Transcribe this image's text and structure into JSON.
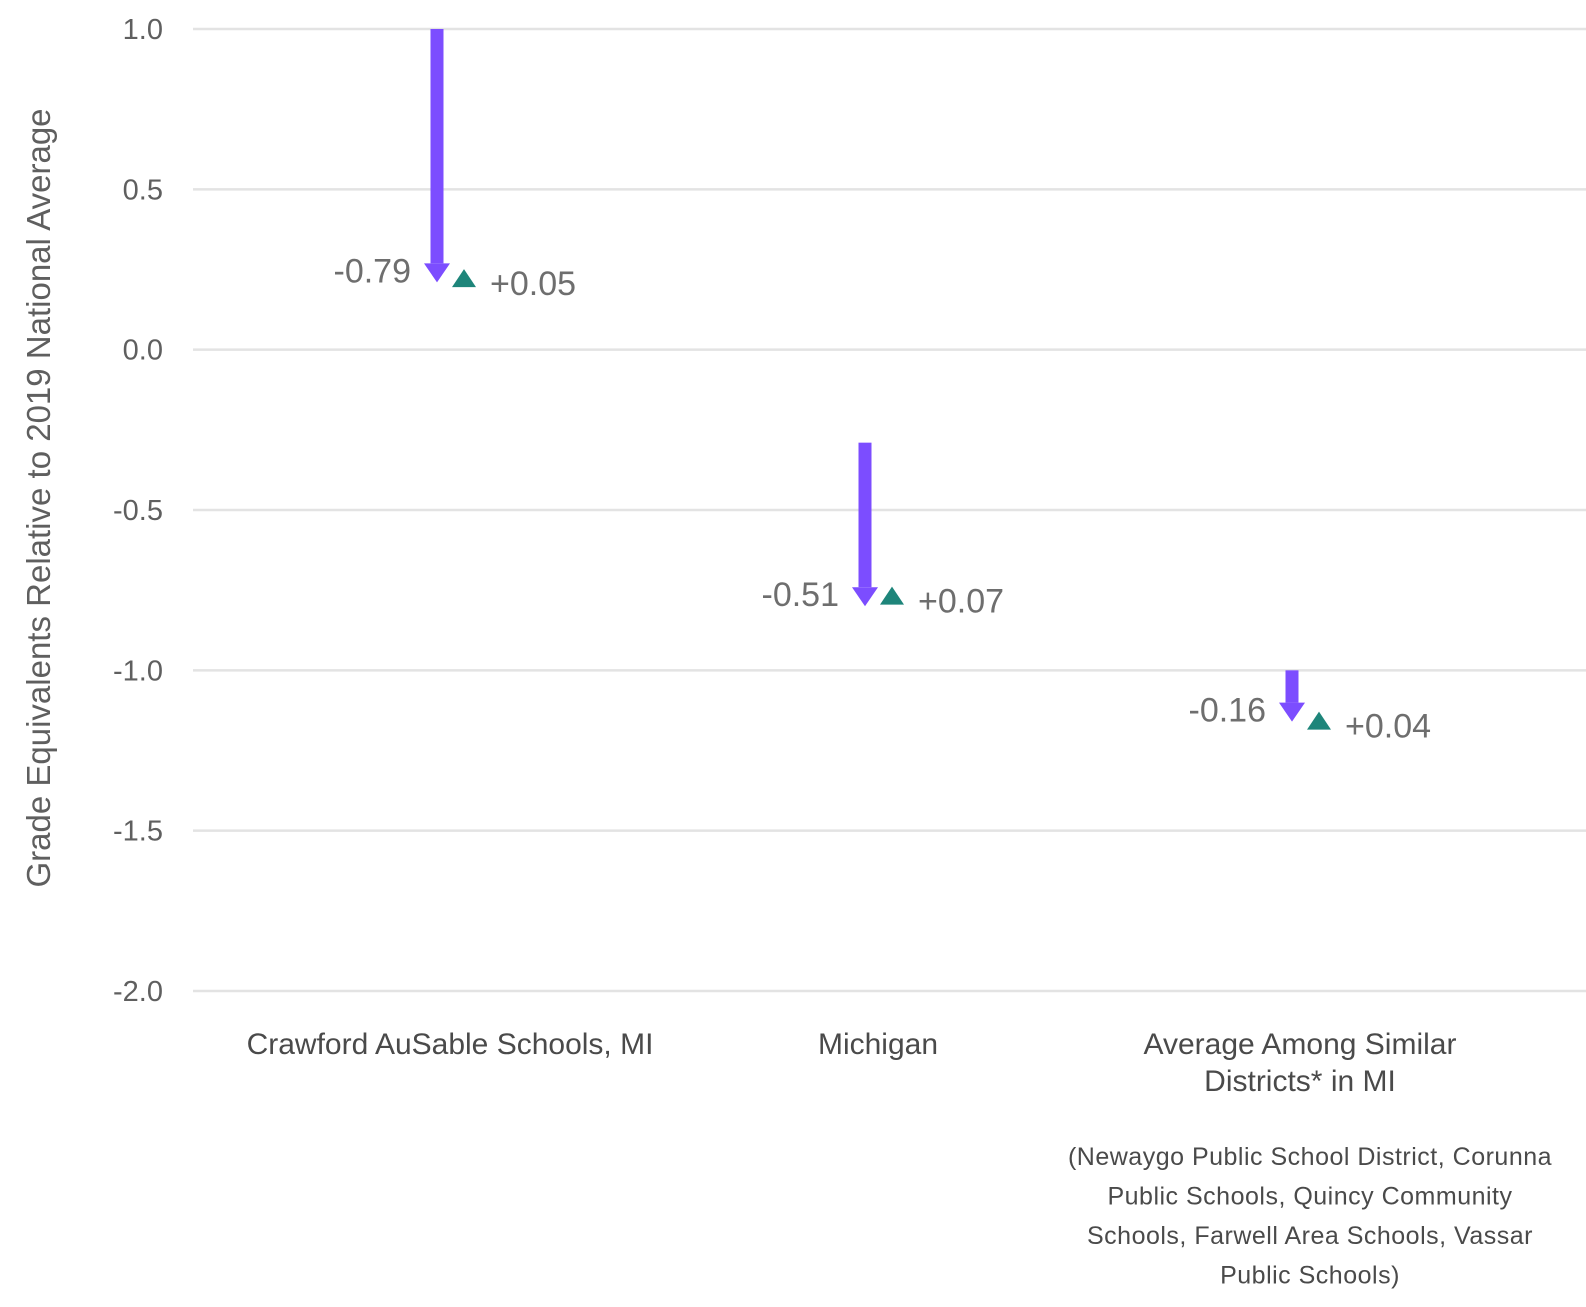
{
  "chart_data": {
    "type": "arrow",
    "ylabel": "Grade Equivalents Relative to 2019 National Average",
    "ylim": [
      -2.0,
      1.0
    ],
    "yticks": [
      1.0,
      0.5,
      0.0,
      -0.5,
      -1.0,
      -1.5,
      -2.0
    ],
    "ytick_labels": [
      "1.0",
      "0.5",
      "0.0",
      "-0.5",
      "-1.0",
      "-1.5",
      "-2.0"
    ],
    "grid": true,
    "colors": {
      "decline": "#7c4dff",
      "recovery": "#1e857a",
      "grid": "#e3e3e3"
    },
    "categories": [
      {
        "label_lines": [
          "Crawford AuSable Schools, MI"
        ],
        "start": 1.0,
        "end": 0.21,
        "change_label": "-0.79",
        "recovery_value": 0.22,
        "recovery_label": "+0.05"
      },
      {
        "label_lines": [
          "Michigan"
        ],
        "start": -0.29,
        "end": -0.8,
        "change_label": "-0.51",
        "recovery_value": -0.77,
        "recovery_label": "+0.07"
      },
      {
        "label_lines": [
          "Average Among Similar",
          "Districts* in MI"
        ],
        "start": -1.0,
        "end": -1.16,
        "change_label": "-0.16",
        "recovery_value": -1.16,
        "recovery_label": "+0.04"
      }
    ],
    "note_lines": [
      "(Newaygo Public School District, Corunna",
      "Public Schools, Quincy Community",
      "Schools, Farwell Area Schools, Vassar",
      "Public Schools)"
    ]
  }
}
